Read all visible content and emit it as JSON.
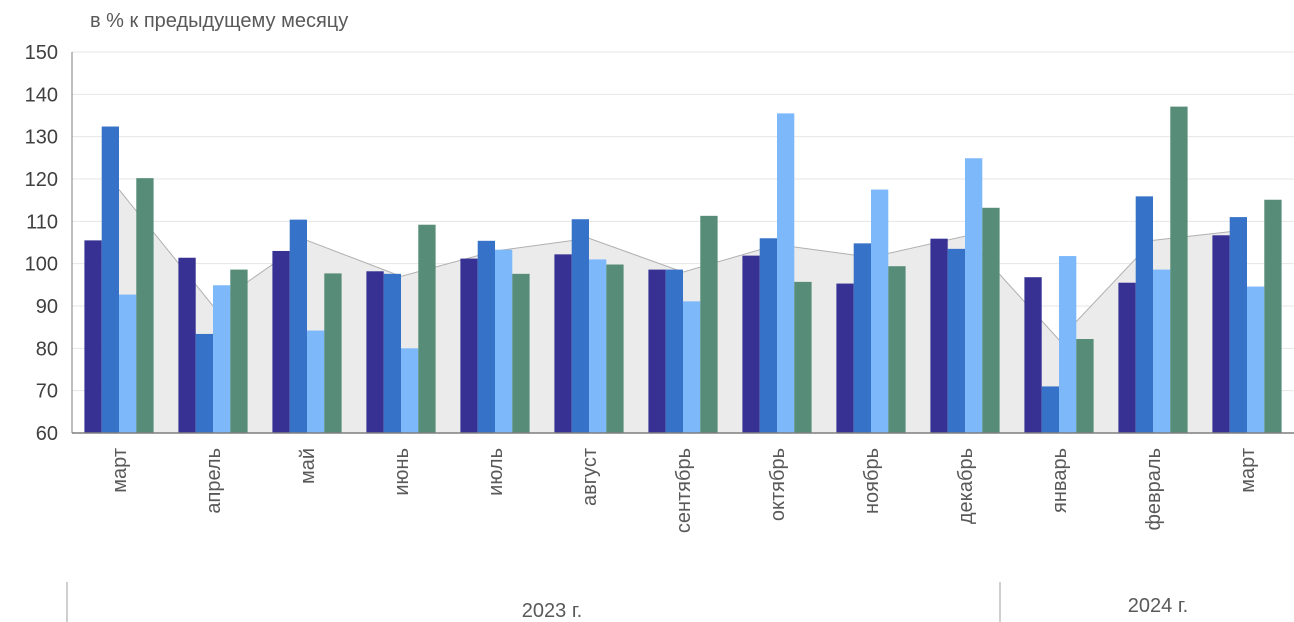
{
  "chart_data": {
    "type": "bar",
    "unit_label": "в % к предыдущему месяцу",
    "categories": [
      "март",
      "апрель",
      "май",
      "июнь",
      "июль",
      "август",
      "сентябрь",
      "октябрь",
      "ноябрь",
      "декабрь",
      "январь",
      "февраль",
      "март"
    ],
    "year_groups": [
      {
        "label": "2023 г.",
        "count": 10
      },
      {
        "label": "2024 г.",
        "count": 3
      }
    ],
    "ylim": [
      60,
      150
    ],
    "yticks": [
      60,
      70,
      80,
      90,
      100,
      110,
      120,
      130,
      140,
      150
    ],
    "grid": true,
    "legend": "none",
    "series": [
      {
        "color": "#373193",
        "values": [
          105.5,
          101.4,
          103.0,
          98.2,
          101.2,
          102.2,
          98.6,
          101.9,
          95.3,
          105.9,
          96.8,
          95.5,
          106.7
        ]
      },
      {
        "color": "#3672C8",
        "values": [
          132.4,
          83.4,
          110.4,
          97.6,
          105.4,
          110.5,
          98.6,
          106.0,
          104.8,
          103.5,
          71.0,
          115.9,
          111.0
        ]
      },
      {
        "color": "#7DB8FB",
        "values": [
          92.7,
          94.9,
          84.2,
          80.0,
          103.3,
          101.0,
          91.1,
          135.5,
          117.5,
          124.9,
          101.8,
          98.6,
          94.6
        ]
      },
      {
        "color": "#568C78",
        "values": [
          120.2,
          98.6,
          97.7,
          109.2,
          97.6,
          99.8,
          111.3,
          95.7,
          99.4,
          113.2,
          82.2,
          137.1,
          115.1
        ]
      }
    ],
    "area": {
      "fill": "#ebebeb",
      "stroke": "#b0b0b0",
      "values": [
        117.5,
        90.0,
        105.5,
        97.0,
        103.0,
        106.0,
        98.0,
        104.5,
        101.5,
        106.5,
        82.0,
        105.5,
        108.0
      ]
    }
  }
}
